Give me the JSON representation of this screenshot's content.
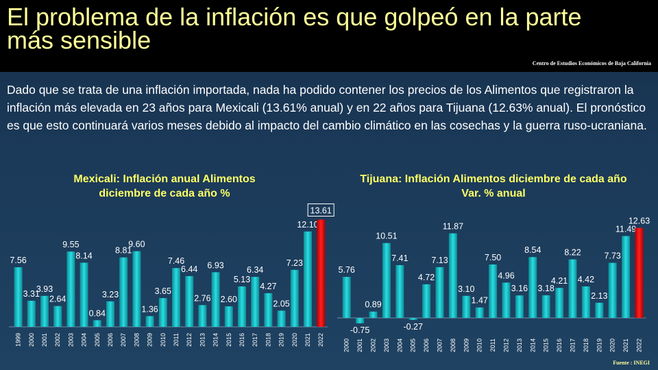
{
  "header": {
    "title": "El problema de la inflación es que golpeó en la parte más sensible",
    "source": "Centro de Estudios Económicos de Baja California"
  },
  "intro": "Dado que se trata de una inflación importada, nada ha podido contener los precios de los Alimentos que registraron la inflación más elevada en 23 años para Mexicali (13.61% anual) y en 22 años para Tijuana (12.63% anual). El pronóstico es que esto continuará varios meses debido al impacto del cambio climático en las cosechas y la guerra ruso-ucraniana.",
  "footer": {
    "source": "Fuente : INEGI"
  },
  "colors": {
    "bar": "#1ec8d0",
    "highlight": "#ff1a1a",
    "title": "#ffff66",
    "label": "#ffffff"
  },
  "chart_data": [
    {
      "type": "bar",
      "title": "Mexicali: Inflación anual Alimentos diciembre de cada año %",
      "categories": [
        "1999",
        "2000",
        "2001",
        "2002",
        "2003",
        "2004",
        "2005",
        "2006",
        "2007",
        "2008",
        "2009",
        "2010",
        "2011",
        "2012",
        "2013",
        "2014",
        "2015",
        "2016",
        "2017",
        "2018",
        "2019",
        "2020",
        "2021",
        "2022"
      ],
      "values": [
        7.56,
        3.31,
        3.93,
        2.64,
        9.55,
        8.14,
        0.84,
        3.23,
        8.81,
        9.6,
        1.36,
        3.65,
        7.46,
        6.44,
        2.76,
        6.93,
        2.6,
        5.13,
        6.34,
        4.27,
        2.05,
        7.23,
        12.1,
        13.61
      ],
      "labels": [
        "7.56",
        "3.31",
        "3.93",
        "2.64",
        "9.55",
        "8.14",
        "0.84",
        "3.23",
        "8.81",
        "9.60",
        "1.36",
        "3.65",
        "7.46",
        "6.44",
        "2.76",
        "6.93",
        "2.60",
        "5.13",
        "6.34",
        "4.27",
        "2.05",
        "7.23",
        "12.10",
        "13.61"
      ],
      "highlight_index": 23,
      "ylim": [
        0,
        14
      ]
    },
    {
      "type": "bar",
      "title": "Tijuana: Inflación Alimentos diciembre de cada año Var. % anual",
      "categories": [
        "2000",
        "2001",
        "2002",
        "2003",
        "2004",
        "2005",
        "2006",
        "2007",
        "2008",
        "2009",
        "2010",
        "2011",
        "2012",
        "2013",
        "2014",
        "2015",
        "2016",
        "2017",
        "2018",
        "2019",
        "2020",
        "2021",
        "2022"
      ],
      "values": [
        5.76,
        -0.75,
        0.89,
        10.51,
        7.41,
        -0.27,
        4.72,
        7.13,
        11.87,
        3.1,
        1.47,
        7.5,
        4.96,
        3.16,
        8.54,
        3.18,
        4.21,
        8.22,
        4.42,
        2.13,
        7.73,
        11.49,
        12.63
      ],
      "labels": [
        "5.76",
        "-0.75",
        "0.89",
        "10.51",
        "7.41",
        "-0.27",
        "4.72",
        "7.13",
        "11.87",
        "3.10",
        "1.47",
        "7.50",
        "4.96",
        "3.16",
        "8.54",
        "3.18",
        "4.21",
        "8.22",
        "4.42",
        "2.13",
        "7.73",
        "11.49",
        "12.63"
      ],
      "highlight_index": 22,
      "ylim": [
        -1,
        13
      ]
    }
  ]
}
